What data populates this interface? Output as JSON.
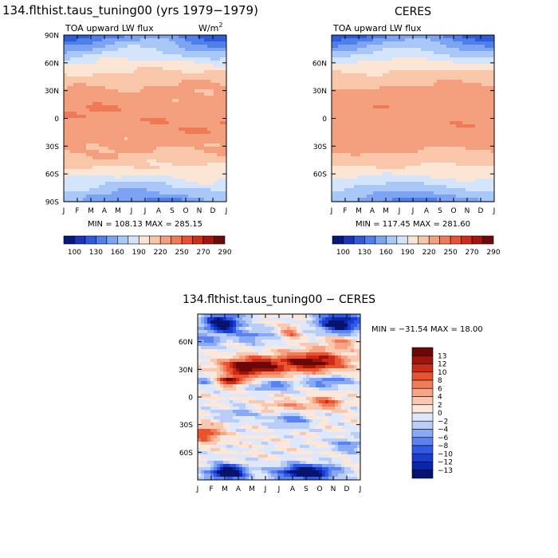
{
  "chart_data": [
    {
      "type": "heatmap",
      "title": "134.flthist.taus_tuning00 (yrs 1979−1979)",
      "subtitle": "TOA upward LW flux",
      "units_base": "W/m",
      "units_exp": "2",
      "x_ticks": [
        "J",
        "F",
        "M",
        "A",
        "M",
        "J",
        "J",
        "A",
        "S",
        "O",
        "N",
        "D",
        "J"
      ],
      "y_ticks": [
        "90N",
        "60N",
        "30N",
        "0",
        "30S",
        "60S",
        "90S"
      ],
      "stats": "MIN = 108.13 MAX = 285.15",
      "colorbar_labels": [
        "100",
        "130",
        "160",
        "190",
        "220",
        "250",
        "270",
        "290"
      ],
      "zrange": [
        100,
        290
      ]
    },
    {
      "type": "heatmap",
      "title": "CERES",
      "subtitle": "TOA upward LW flux",
      "x_ticks": [
        "J",
        "F",
        "M",
        "A",
        "M",
        "J",
        "J",
        "A",
        "S",
        "O",
        "N",
        "D",
        "J"
      ],
      "y_ticks": [
        "60N",
        "30N",
        "0",
        "30S",
        "60S"
      ],
      "stats": "MIN = 117.45 MAX = 281.60",
      "colorbar_labels": [
        "100",
        "130",
        "160",
        "190",
        "220",
        "250",
        "270",
        "290"
      ],
      "zrange": [
        100,
        290
      ]
    },
    {
      "type": "heatmap",
      "title": "134.flthist.taus_tuning00 − CERES",
      "x_ticks": [
        "J",
        "F",
        "M",
        "A",
        "M",
        "J",
        "J",
        "A",
        "S",
        "O",
        "N",
        "D",
        "J"
      ],
      "y_ticks": [
        "60N",
        "30N",
        "0",
        "30S",
        "60S"
      ],
      "stats": "MIN = −31.54 MAX =  18.00",
      "colorbar_labels": [
        "13",
        "12",
        "10",
        "8",
        "6",
        "4",
        "2",
        "0",
        "−2",
        "−4",
        "−6",
        "−8",
        "−10",
        "−12",
        "−13"
      ],
      "zrange": [
        -14,
        14
      ]
    }
  ],
  "colors": {
    "abs_palette": [
      "#08177a",
      "#1c33b5",
      "#2f5bd8",
      "#4f80ea",
      "#7ca4f2",
      "#a9c7f7",
      "#d4e4fb",
      "#fbe6d6",
      "#f8c6a8",
      "#f4a07e",
      "#ef7a56",
      "#e85132",
      "#d12c1b",
      "#a41410",
      "#6e0a0a"
    ],
    "diff_palette": [
      "#07146e",
      "#0c25a8",
      "#1a3bd0",
      "#2f5ae6",
      "#5a83f0",
      "#8aa9f4",
      "#b8cdf8",
      "#dfe8fb",
      "#fce7da",
      "#f9c8b0",
      "#f5a485",
      "#f07b57",
      "#e8542f",
      "#cc2c15",
      "#9d140b",
      "#6b0707"
    ]
  }
}
